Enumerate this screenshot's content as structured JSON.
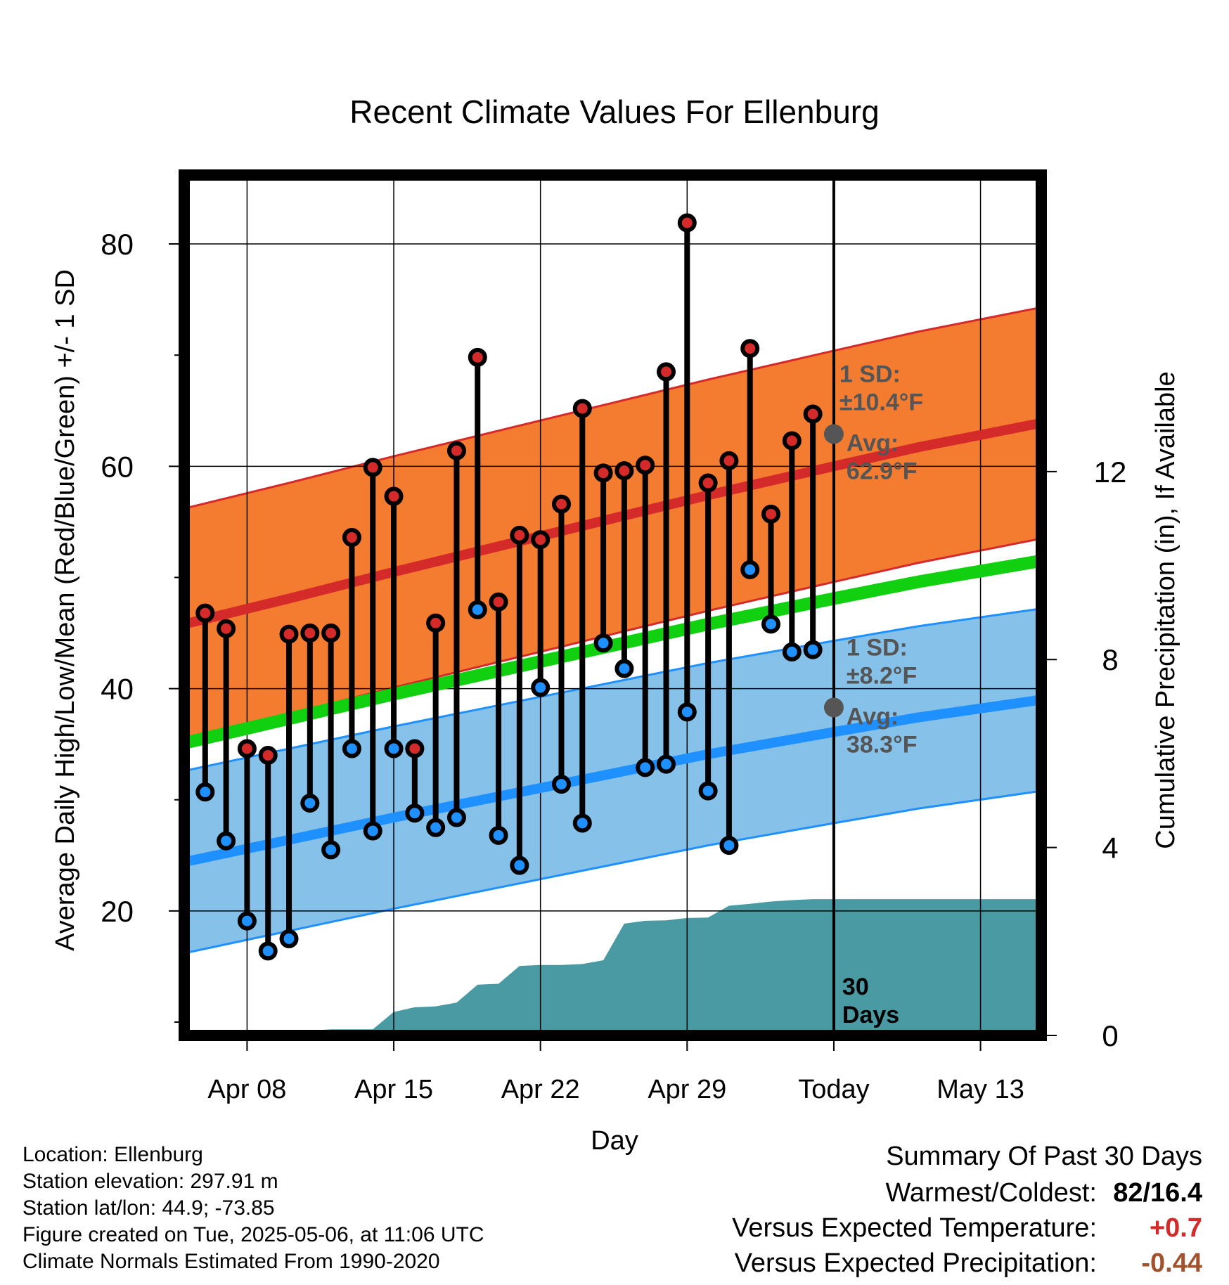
{
  "chart_data": {
    "type": "line",
    "title": "Recent Climate Values For Ellenburg",
    "xlabel": "Day",
    "ylabel_left": "Average Daily High/Low/Mean (Red/Blue/Green) +/- 1 SD",
    "ylabel_right": "Cumulative Precipitation (in), If Available",
    "x_ticks": [
      "Apr 08",
      "Apr 15",
      "Apr 22",
      "Apr 29",
      "Today",
      "May 13"
    ],
    "x_tick_day": [
      3,
      10,
      17,
      24,
      31,
      38
    ],
    "x_range": [
      0,
      40.9
    ],
    "y_left_ticks": [
      20,
      40,
      60,
      80
    ],
    "y_left_minor": [
      10,
      30,
      50,
      70
    ],
    "y_left_range": [
      8.8,
      86.2
    ],
    "y_right_ticks": [
      0,
      4,
      8,
      12
    ],
    "y_right_range": [
      0,
      18.31
    ],
    "today_label": "30 Days",
    "days": [
      1,
      2,
      3,
      4,
      5,
      6,
      7,
      8,
      9,
      10,
      11,
      12,
      13,
      14,
      15,
      16,
      17,
      18,
      19,
      20,
      21,
      22,
      23,
      24,
      25,
      26,
      27,
      28,
      29,
      30
    ],
    "highs": [
      46.8,
      45.4,
      34.6,
      34.0,
      44.9,
      45.0,
      45.0,
      53.6,
      59.9,
      57.3,
      34.6,
      45.9,
      61.4,
      69.8,
      47.8,
      53.8,
      53.4,
      56.6,
      65.2,
      59.4,
      59.6,
      60.1,
      68.5,
      81.9,
      58.5,
      60.5,
      70.6,
      55.7,
      62.3,
      64.7
    ],
    "lows": [
      30.7,
      26.3,
      19.1,
      16.4,
      17.5,
      29.7,
      25.5,
      34.6,
      27.2,
      34.6,
      28.8,
      27.5,
      28.4,
      47.1,
      26.8,
      24.1,
      40.1,
      31.4,
      27.9,
      44.1,
      41.8,
      32.9,
      33.2,
      37.9,
      30.8,
      25.9,
      50.7,
      45.8,
      43.3,
      43.5
    ],
    "normal_days": [
      0,
      5,
      10,
      15,
      20,
      25,
      31,
      35,
      40.9
    ],
    "normal_high": [
      45.8,
      48.1,
      50.5,
      52.8,
      55.1,
      57.4,
      60.0,
      61.7,
      63.9
    ],
    "normal_low": [
      24.4,
      26.4,
      28.4,
      30.3,
      32.2,
      34.1,
      36.1,
      37.4,
      39.0
    ],
    "normal_mean": [
      35.1,
      37.3,
      39.5,
      41.6,
      43.7,
      45.8,
      48.1,
      49.6,
      51.5
    ],
    "sd_high": 10.4,
    "sd_low": 8.2,
    "annotations": {
      "high_sd": [
        "1 SD:",
        "±10.4°F"
      ],
      "high_avg": [
        "Avg:",
        "62.9°F"
      ],
      "low_sd": [
        "1 SD:",
        "±8.2°F"
      ],
      "low_avg": [
        "Avg:",
        "38.3°F"
      ]
    },
    "precip_days": [
      0,
      2,
      3,
      4,
      5,
      6,
      7,
      8,
      9,
      10,
      11,
      12,
      13,
      14,
      15,
      16,
      17,
      18,
      19,
      20,
      21,
      22,
      23,
      24,
      25,
      26,
      27,
      28,
      29,
      30,
      31,
      40.9
    ],
    "precip_cum": [
      0,
      0,
      0.05,
      0.06,
      0.07,
      0.1,
      0.13,
      0.13,
      0.13,
      0.5,
      0.6,
      0.62,
      0.7,
      1.08,
      1.1,
      1.48,
      1.5,
      1.5,
      1.52,
      1.6,
      2.38,
      2.44,
      2.45,
      2.5,
      2.51,
      2.76,
      2.8,
      2.85,
      2.88,
      2.9,
      2.9,
      2.9
    ],
    "grid": true,
    "colors": {
      "high_band": "#f47c30",
      "high_line": "#d42a2a",
      "low_band": "#85c1e9",
      "low_line": "#1e90ff",
      "mean_line": "#10d010",
      "precip": "#4a9aa3",
      "high_dot": "#d42a2a",
      "low_dot": "#1e90ff",
      "annotation": "#555555"
    }
  },
  "info": {
    "location": "Location: Ellenburg",
    "elevation": "Station elevation: 297.91 m",
    "latlon": "Station lat/lon: 44.9; -73.85",
    "created": "Figure created on Tue, 2025-05-06, at 11:06 UTC",
    "normals": "Climate Normals Estimated From 1990-2020"
  },
  "summary": {
    "title": "Summary Of Past 30 Days",
    "warmest_label": "Warmest/Coldest:",
    "warmest_value": "82/16.4",
    "temp_label": "Versus Expected Temperature:",
    "temp_value": "+0.7",
    "temp_color": "#d42a2a",
    "precip_label": "Versus Expected Precipitation:",
    "precip_value": "-0.44",
    "precip_color": "#a0522d"
  }
}
